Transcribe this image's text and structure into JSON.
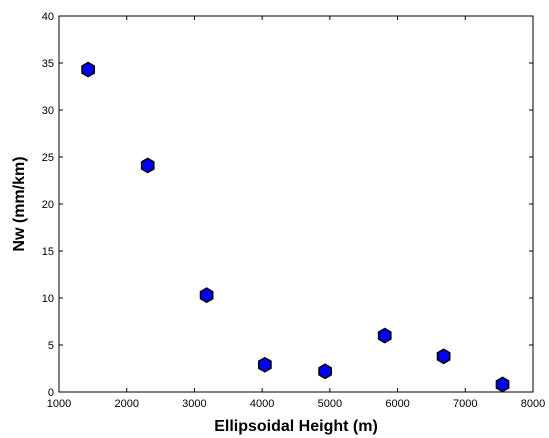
{
  "chart_data": {
    "type": "scatter",
    "title": "",
    "xlabel": "Ellipsoidal Height (m)",
    "ylabel": "Nw (mm/km)",
    "xlim": [
      1000,
      8000
    ],
    "ylim": [
      0,
      40
    ],
    "xticks": [
      "1000",
      "2000",
      "3000",
      "4000",
      "5000",
      "6000",
      "7000",
      "8000"
    ],
    "yticks": [
      "0",
      "5",
      "10",
      "15",
      "20",
      "25",
      "30",
      "35",
      "40"
    ],
    "grid": false,
    "legend": "none",
    "marker": "hexagon",
    "marker_color": "#0000ff",
    "x": [
      1430,
      2310,
      3180,
      4040,
      4930,
      5810,
      6680,
      7550
    ],
    "y": [
      34.3,
      24.1,
      10.3,
      2.9,
      2.2,
      6.0,
      3.8,
      0.8
    ]
  }
}
